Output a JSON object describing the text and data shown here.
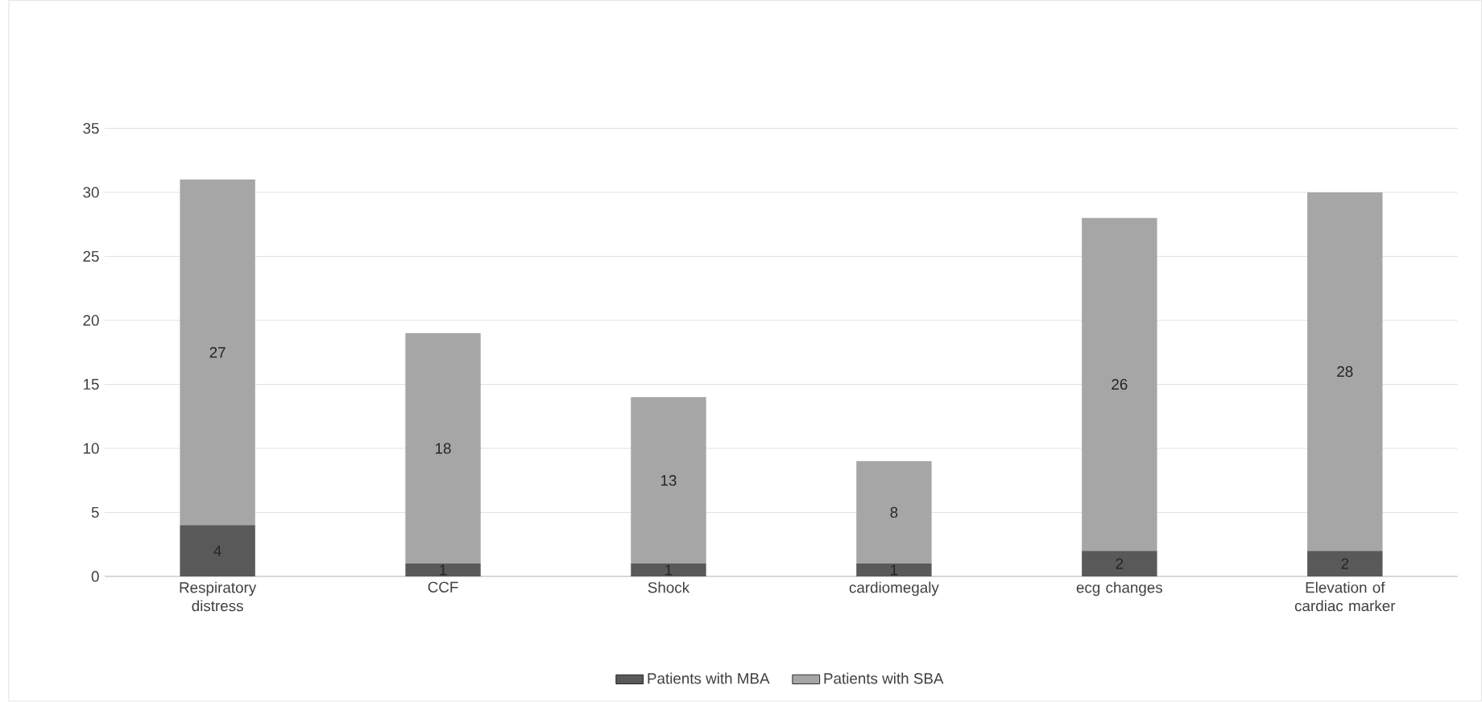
{
  "chart_data": {
    "type": "bar",
    "stacked": true,
    "categories": [
      "Respiratory distress",
      "CCF",
      "Shock",
      "cardiomegaly",
      "ecg changes",
      "Elevation of cardiac marker"
    ],
    "series": [
      {
        "name": "Patients with MBA",
        "color": "#595959",
        "values": [
          4,
          1,
          1,
          1,
          2,
          2
        ]
      },
      {
        "name": "Patients with SBA",
        "color": "#a6a6a6",
        "values": [
          27,
          18,
          13,
          8,
          26,
          28
        ]
      }
    ],
    "ylim": [
      0,
      35
    ],
    "yticks": [
      0,
      5,
      10,
      15,
      20,
      25,
      30,
      35
    ],
    "grid": "y",
    "legend": "bottom",
    "data_labels": true
  }
}
